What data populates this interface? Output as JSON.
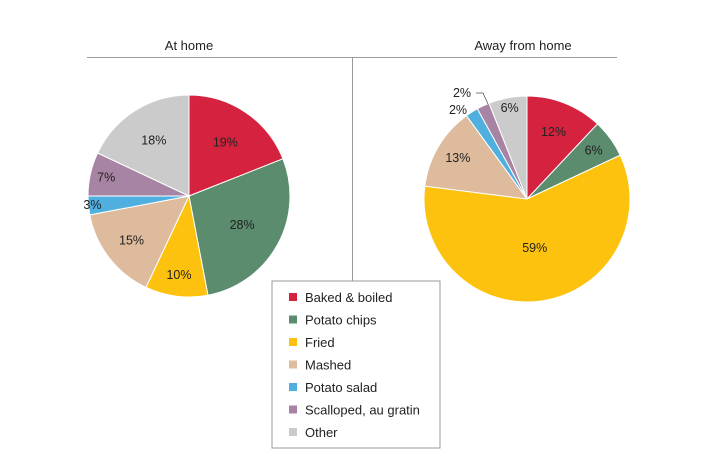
{
  "chart_data": [
    {
      "type": "pie",
      "title": "At home",
      "categories": [
        "Baked & boiled",
        "Potato chips",
        "Fried",
        "Mashed",
        "Potato salad",
        "Scalloped, au gratin",
        "Other"
      ],
      "values": [
        19,
        28,
        10,
        15,
        3,
        7,
        18
      ],
      "labels": [
        "19%",
        "28%",
        "10%",
        "15%",
        "3%",
        "7%",
        "18%"
      ]
    },
    {
      "type": "pie",
      "title": "Away from home",
      "categories": [
        "Baked & boiled",
        "Potato chips",
        "Fried",
        "Mashed",
        "Potato salad",
        "Scalloped, au gratin",
        "Other"
      ],
      "values": [
        12,
        6,
        59,
        13,
        2,
        2,
        6
      ],
      "labels": [
        "12%",
        "6%",
        "59%",
        "13%",
        "2%",
        "2%",
        "6%"
      ]
    }
  ],
  "legend": {
    "position": "bottom-center",
    "items": [
      {
        "label": "Baked & boiled",
        "color": "#d5233f"
      },
      {
        "label": "Potato chips",
        "color": "#5b8c6e"
      },
      {
        "label": "Fried",
        "color": "#fcc20e"
      },
      {
        "label": "Mashed",
        "color": "#ddbb9c"
      },
      {
        "label": "Potato salad",
        "color": "#4fb0e0"
      },
      {
        "label": "Scalloped, au gratin",
        "color": "#a784a3"
      },
      {
        "label": "Other",
        "color": "#cbcbcb"
      }
    ]
  }
}
